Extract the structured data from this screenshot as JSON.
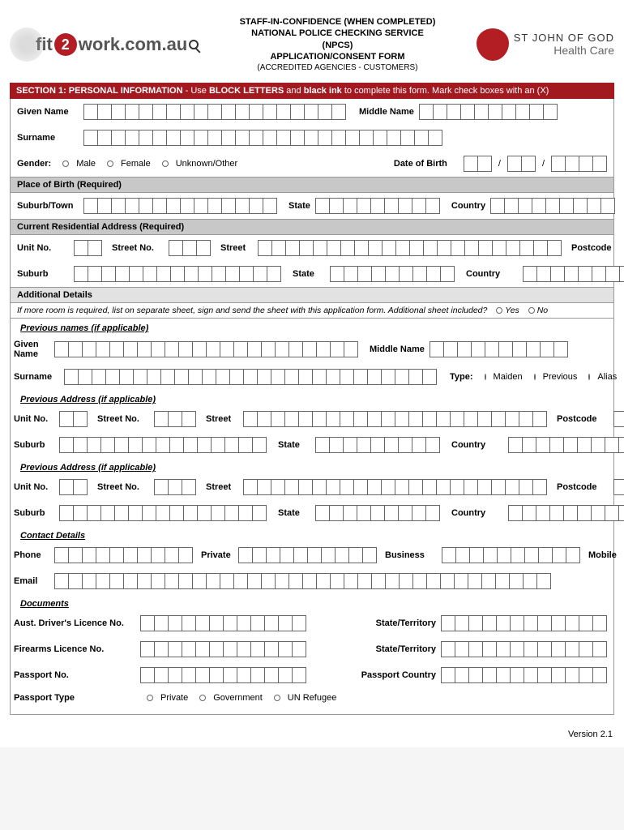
{
  "header": {
    "logo_left_fit": "fit",
    "logo_left_two": "2",
    "logo_left_work": "work.com.au",
    "line1": "STAFF-IN-CONFIDENCE (WHEN COMPLETED)",
    "line2": "NATIONAL POLICE CHECKING SERVICE",
    "line3": "(NPCS)",
    "line4": "APPLICATION/CONSENT FORM",
    "line5": "(ACCREDITED AGENCIES - CUSTOMERS)",
    "right_l1": "ST JOHN OF GOD",
    "right_l2": "Health Care"
  },
  "section1_bar": {
    "prefix": "SECTION 1: PERSONAL INFORMATION",
    "mid": " - Use ",
    "b1": "BLOCK LETTERS",
    "mid2": " and ",
    "b2": "black ink",
    "suffix": " to complete this form. Mark check boxes with an (X)"
  },
  "labels": {
    "given_name": "Given Name",
    "middle_name": "Middle Name",
    "surname": "Surname",
    "gender": "Gender:",
    "male": "Male",
    "female": "Female",
    "unknown": "Unknown/Other",
    "dob": "Date of Birth",
    "slash": "/",
    "pob": "Place of Birth (Required)",
    "suburb_town": "Suburb/Town",
    "state": "State",
    "country": "Country",
    "cra": "Current Residential Address (Required)",
    "unit": "Unit No.",
    "street_no": "Street No.",
    "street": "Street",
    "postcode": "Postcode",
    "suburb": "Suburb",
    "additional": "Additional Details",
    "additional_note": "If more room is required, list on separate sheet, sign and send the sheet with this application form. Additional sheet included?",
    "yes": "Yes",
    "no": "No",
    "prev_names": "Previous names (if applicable)",
    "given_name2": "Given\nName",
    "type": "Type:",
    "maiden": "Maiden",
    "previous": "Previous",
    "alias": "Alias",
    "prev_addr": "Previous Address (if applicable)",
    "contact": "Contact Details",
    "phone": "Phone",
    "private": "Private",
    "business": "Business",
    "mobile": "Mobile",
    "email": "Email",
    "documents": "Documents",
    "drivers": "Aust. Driver's Licence No.",
    "state_terr": "State/Territory",
    "firearms": "Firearms Licence No.",
    "passport_no": "Passport No.",
    "passport_country": "Passport Country",
    "passport_type": "Passport Type",
    "pt_private": "Private",
    "pt_gov": "Government",
    "pt_un": "UN Refugee"
  },
  "version": "Version 2.1",
  "colors": {
    "red": "#a31920",
    "grey": "#c8c8c8",
    "lightgrey": "#e2e2e2",
    "border": "#999"
  }
}
